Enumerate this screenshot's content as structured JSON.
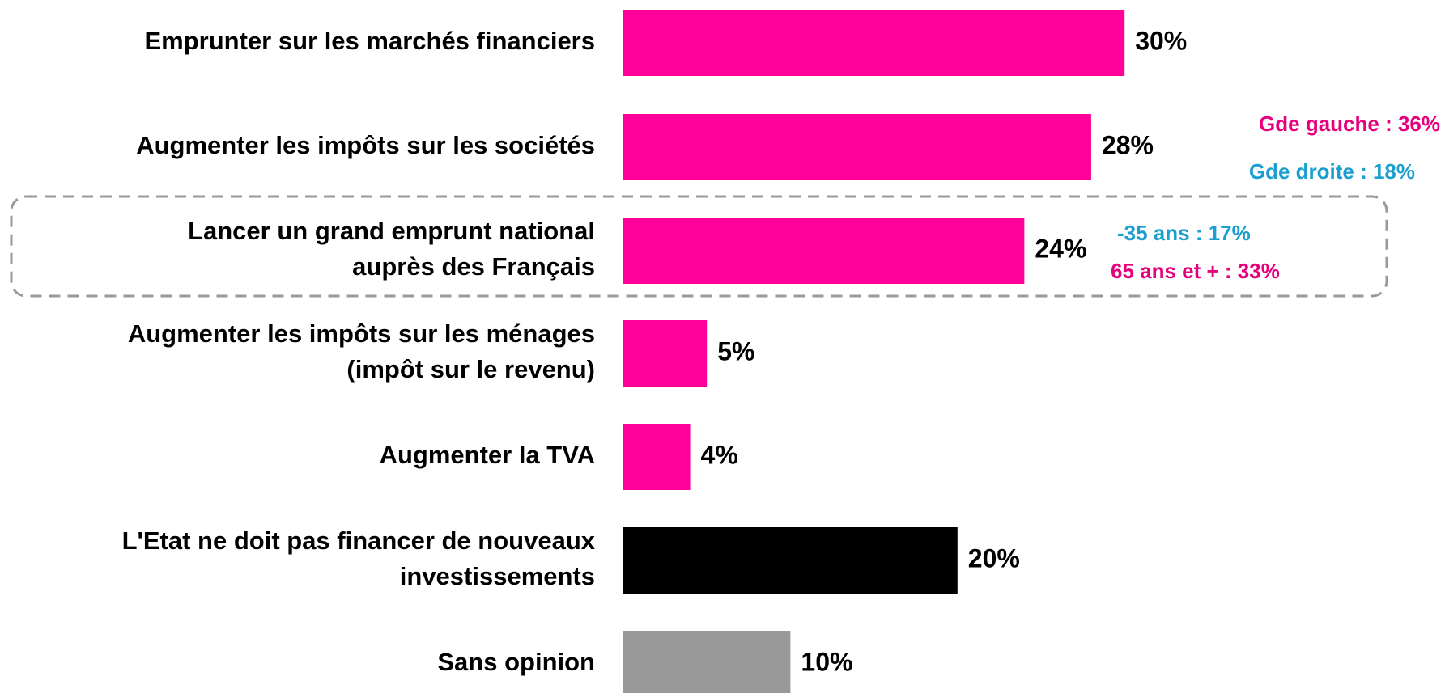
{
  "chart_data": {
    "type": "barh",
    "categories": [
      "Emprunter sur les marchés financiers",
      "Augmenter les impôts sur les sociétés",
      "Lancer un grand emprunt national\nauprès des Français",
      "Augmenter les impôts sur les ménages\n(impôt sur le revenu)",
      "Augmenter la TVA",
      "L'Etat ne doit pas financer de nouveaux\ninvestissements",
      "Sans opinion"
    ],
    "values": [
      30,
      28,
      24,
      5,
      4,
      20,
      10
    ],
    "value_labels": [
      "30%",
      "28%",
      "24%",
      "5%",
      "4%",
      "20%",
      "10%"
    ],
    "colors": [
      "#ff0099",
      "#ff0099",
      "#ff0099",
      "#ff0099",
      "#ff0099",
      "#000000",
      "#999999"
    ],
    "annotations": [
      {
        "text": "Gde gauche : 36%",
        "color": "#e6007e"
      },
      {
        "text": "Gde droite : 18%",
        "color": "#1a9fd0"
      },
      {
        "text": "-35 ans : 17%",
        "color": "#1a9fd0"
      },
      {
        "text": "65 ans et + : 33%",
        "color": "#e6007e"
      }
    ]
  }
}
